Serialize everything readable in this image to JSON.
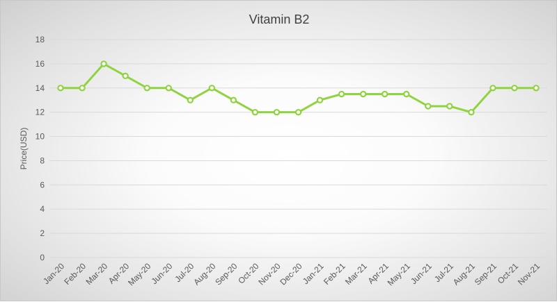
{
  "chart_data": {
    "type": "line",
    "title": "Vitamin B2",
    "xlabel": "",
    "ylabel": "Price(USD)",
    "ylim": [
      0,
      18
    ],
    "ytick_step": 2,
    "yticks": [
      "0",
      "2",
      "4",
      "6",
      "8",
      "10",
      "12",
      "14",
      "16",
      "18"
    ],
    "grid": true,
    "categories": [
      "Jan-20",
      "Feb-20",
      "Mar-20",
      "Apr-20",
      "May-20",
      "Jun-20",
      "Jul-20",
      "Aug-20",
      "Sep-20",
      "Oct-20",
      "Nov-20",
      "Dec-20",
      "Jan-21",
      "Feb-21",
      "Mar-21",
      "Apr-21",
      "May-21",
      "Jun-21",
      "Jul-21",
      "Aug-21",
      "Sep-21",
      "Oct-21",
      "Nov-21"
    ],
    "series": [
      {
        "name": "Vitamin B2",
        "color": "#8fd43f",
        "values": [
          14,
          14,
          16,
          15,
          14,
          14,
          13,
          14,
          13,
          12,
          12,
          12,
          13,
          13.5,
          13.5,
          13.5,
          13.5,
          12.5,
          12.5,
          12,
          14,
          14,
          14
        ]
      }
    ]
  }
}
